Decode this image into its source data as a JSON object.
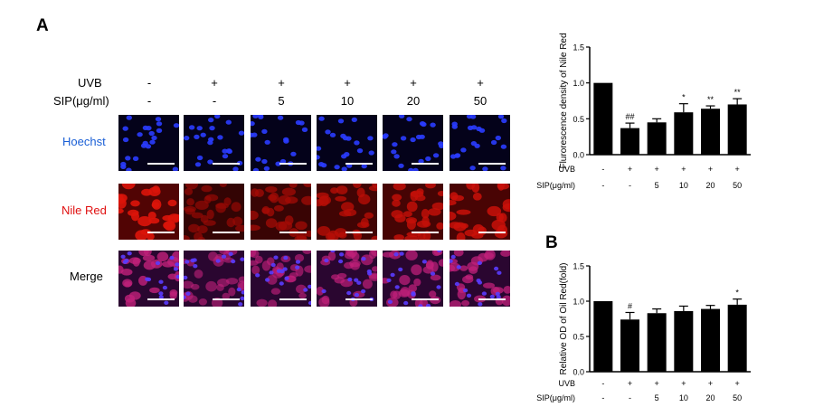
{
  "panel_a": {
    "letter": "A",
    "uvb_label": "UVB",
    "sip_label": "SIP(μg/ml)",
    "uvb_values": [
      "-",
      "+",
      "+",
      "+",
      "+",
      "+"
    ],
    "sip_values": [
      "-",
      "-",
      "5",
      "10",
      "20",
      "50"
    ],
    "row_labels": [
      "Hoechst",
      "Nile Red",
      "Merge"
    ],
    "row_label_colors": [
      "#1a5fd6",
      "#e01010",
      "#000000"
    ]
  },
  "panel_b": {
    "letter": "B"
  },
  "chart_data": [
    {
      "type": "bar",
      "ylabel": "Flurorescence density of Nile Red",
      "ylim": [
        0,
        1.5
      ],
      "yticks": [
        "0.0",
        "0.5",
        "1.0",
        "1.5"
      ],
      "row_labels": [
        "UVB",
        "SIP(μg/ml)"
      ],
      "uvb_row": [
        "-",
        "+",
        "+",
        "+",
        "+",
        "+"
      ],
      "sip_row": [
        "-",
        "-",
        "5",
        "10",
        "20",
        "50"
      ],
      "values": [
        1.0,
        0.37,
        0.45,
        0.59,
        0.64,
        0.7
      ],
      "errors": [
        0.0,
        0.07,
        0.05,
        0.12,
        0.04,
        0.08
      ],
      "annotations": [
        "",
        "##",
        "",
        "*",
        "**",
        "**"
      ]
    },
    {
      "type": "bar",
      "ylabel": "Relative OD of Oil Red(fold)",
      "ylim": [
        0,
        1.5
      ],
      "yticks": [
        "0.0",
        "0.5",
        "1.0",
        "1.5"
      ],
      "row_labels": [
        "UVB",
        "SIP(μg/ml)"
      ],
      "uvb_row": [
        "-",
        "+",
        "+",
        "+",
        "+",
        "+"
      ],
      "sip_row": [
        "-",
        "-",
        "5",
        "10",
        "20",
        "50"
      ],
      "values": [
        1.0,
        0.74,
        0.83,
        0.86,
        0.89,
        0.95
      ],
      "errors": [
        0.0,
        0.1,
        0.06,
        0.07,
        0.05,
        0.08
      ],
      "annotations": [
        "",
        "#",
        "",
        "",
        "",
        "*"
      ]
    }
  ]
}
